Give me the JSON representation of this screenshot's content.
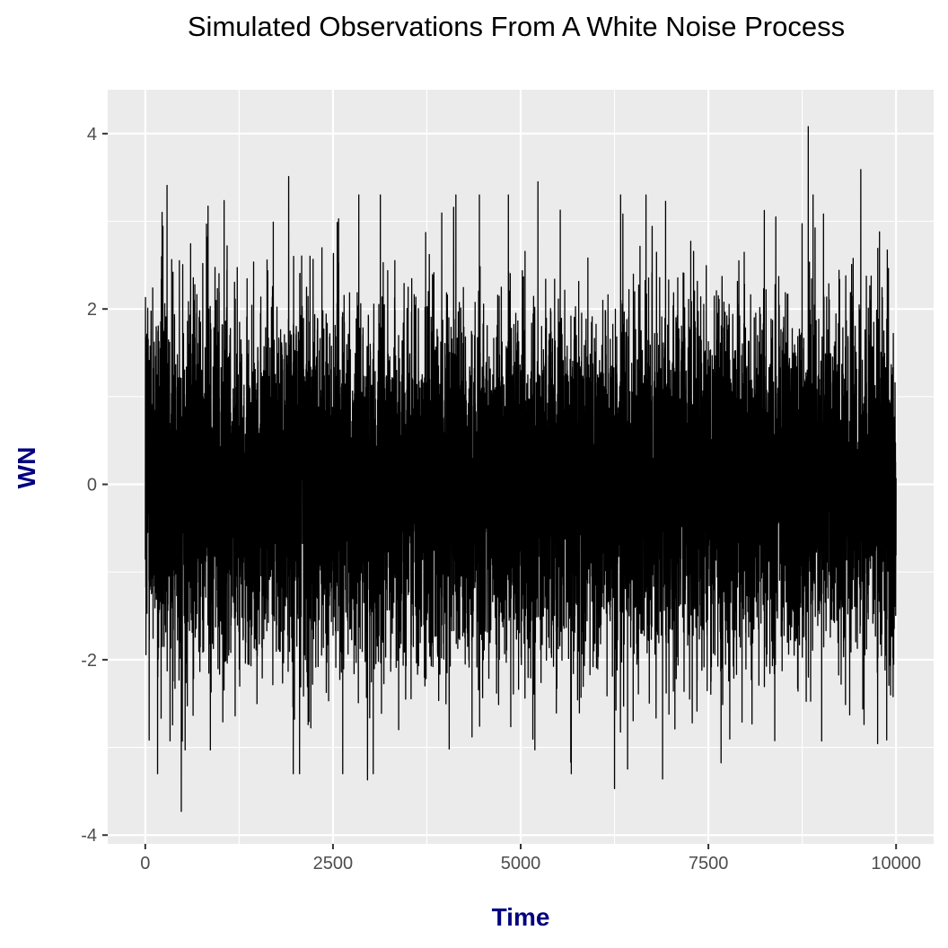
{
  "chart_data": {
    "type": "line",
    "title": "Simulated Observations From A White Noise Process",
    "xlabel": "Time",
    "ylabel": "WN",
    "xlim": [
      -500,
      10500
    ],
    "ylim": [
      -4.1,
      4.5
    ],
    "x_ticks": [
      0,
      2500,
      5000,
      7500,
      10000
    ],
    "y_ticks": [
      -4,
      -2,
      0,
      2,
      4
    ],
    "grid": true,
    "series": [
      {
        "n_observations": 10000,
        "x_start": 1,
        "x_end": 10000,
        "mean": 0,
        "sd": 1,
        "notable_values": [
          {
            "x": 8830,
            "y": 4.08
          },
          {
            "x": 480,
            "y": -3.73
          },
          {
            "x": 9530,
            "y": 3.59
          },
          {
            "x": 1910,
            "y": 3.51
          },
          {
            "x": 6250,
            "y": -3.47
          },
          {
            "x": 5230,
            "y": 3.45
          },
          {
            "x": 290,
            "y": 3.41
          },
          {
            "x": 2960,
            "y": -3.37
          },
          {
            "x": 6890,
            "y": -3.36
          }
        ]
      }
    ],
    "colors": {
      "panel_background": "#ebebeb",
      "grid_major": "#ffffff",
      "line": "#000000",
      "axis_title": "#000080",
      "tick_label": "#4d4d4d"
    }
  }
}
